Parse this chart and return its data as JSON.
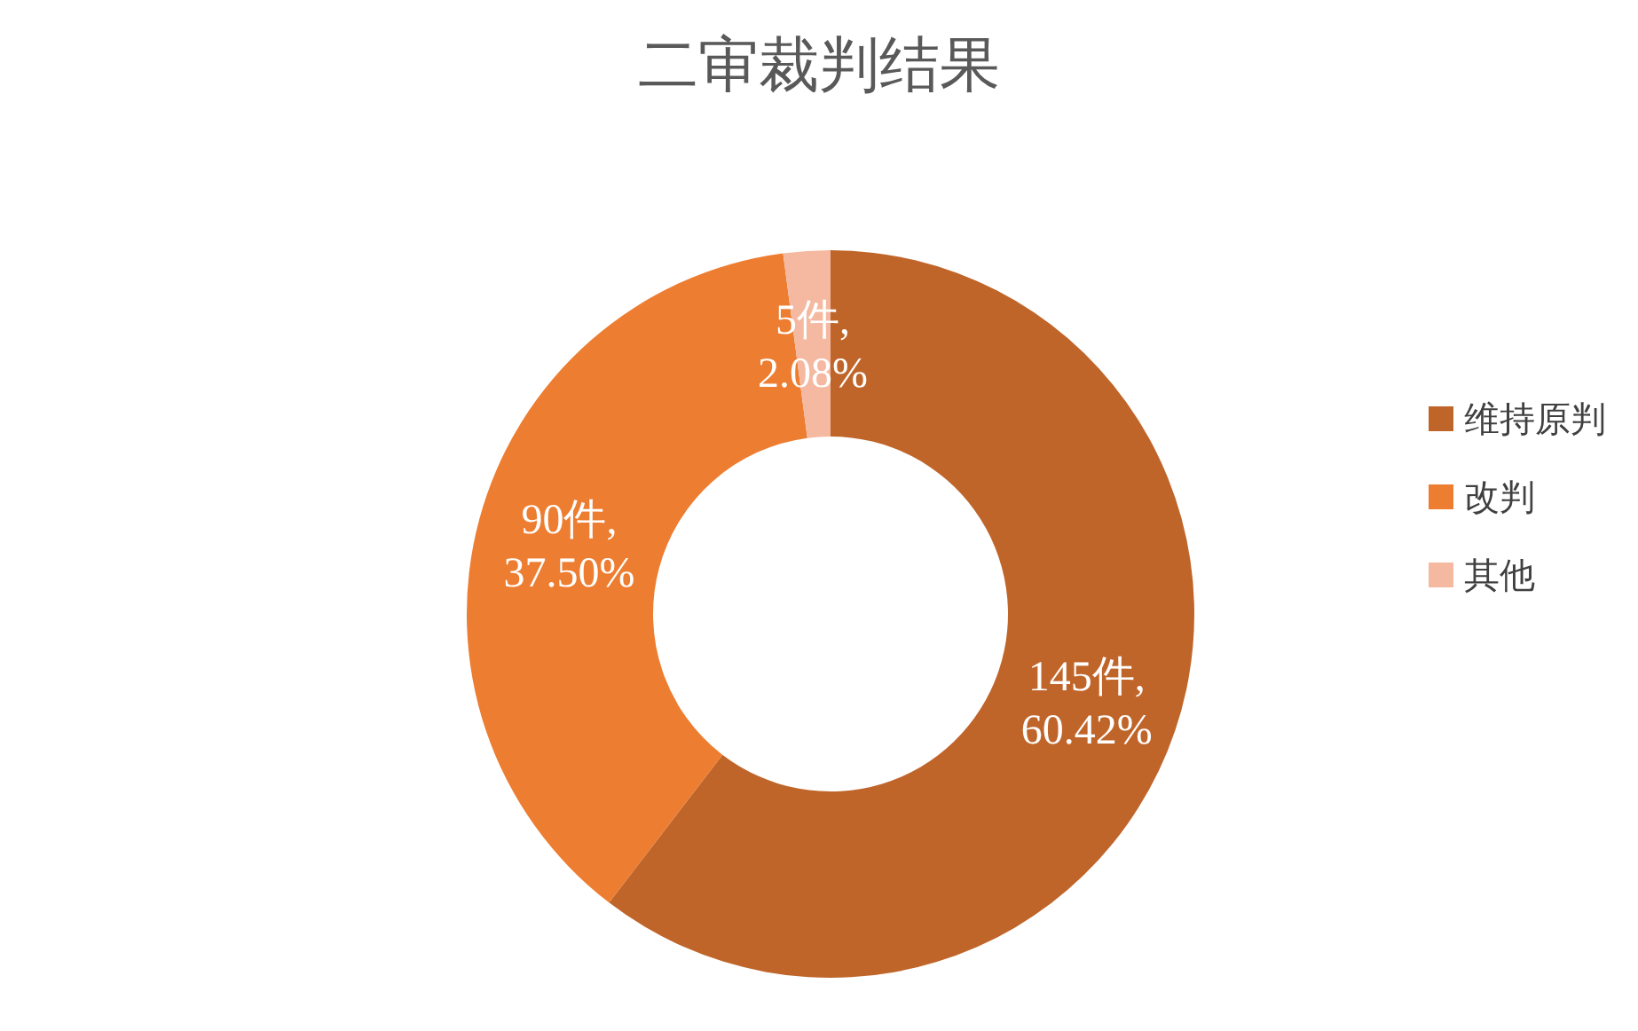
{
  "chart_data": {
    "type": "donut",
    "title": "二审裁判结果",
    "categories": [
      "维持原判",
      "改判",
      "其他"
    ],
    "values": [
      145,
      90,
      5
    ],
    "colors": [
      "#c0652a",
      "#ed7d31",
      "#f4b9a0"
    ],
    "value_labels": [
      "145件, 60.42%",
      "90件, 37.50%",
      "5件, 2.08%"
    ],
    "legend": "right"
  }
}
